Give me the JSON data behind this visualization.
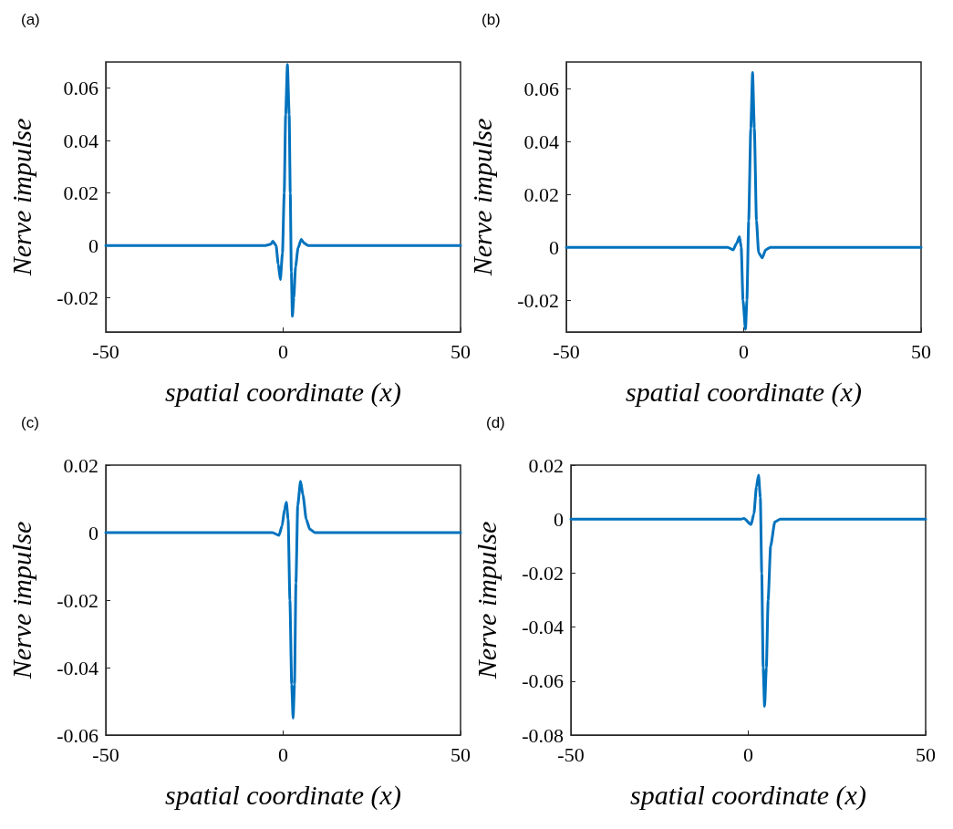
{
  "chart_data": [
    {
      "type": "line",
      "title": "(a)",
      "xlabel": "spatial coordinate (x)",
      "ylabel": "Nerve impulse",
      "color": "#0072bd",
      "line_style": "solid",
      "marker": "none",
      "grid": false,
      "x": [
        -50,
        -5,
        -3.5,
        -2.9,
        -2,
        -1.4,
        -0.8,
        -0.2,
        0.3,
        0.7,
        1.2,
        1.7,
        2.0,
        2.3,
        2.6,
        3.0,
        3.5,
        4.2,
        5.1,
        6,
        7,
        50
      ],
      "values": [
        0,
        0,
        0.0005,
        0.0016,
        0,
        -0.007,
        -0.013,
        -0.003,
        0.02,
        0.05,
        0.069,
        0.05,
        0.02,
        -0.01,
        -0.027,
        -0.02,
        -0.008,
        -0.001,
        0.0023,
        0.0008,
        0,
        0
      ],
      "xlim": [
        -50,
        50
      ],
      "xticks": [
        -50,
        0,
        50
      ],
      "ylim": [
        -0.033,
        0.07
      ],
      "yticks": [
        -0.02,
        0,
        0.02,
        0.04,
        0.06
      ]
    },
    {
      "type": "line",
      "title": "(b)",
      "xlabel": "spatial coordinate (x)",
      "ylabel": "Nerve impulse",
      "color": "#0072bd",
      "line_style": "solid",
      "marker": "none",
      "grid": false,
      "x": [
        -50,
        -4.5,
        -3,
        -2,
        -1.2,
        -0.7,
        -0.2,
        0.5,
        0.9,
        1.4,
        2,
        2.5,
        3,
        3.6,
        4.2,
        5.2,
        6.2,
        7.5,
        50
      ],
      "values": [
        0,
        0,
        -0.001,
        0.0015,
        0.004,
        0,
        -0.02,
        -0.031,
        -0.02,
        0.01,
        0.045,
        0.066,
        0.045,
        0.01,
        -0.002,
        -0.004,
        -0.001,
        0,
        0
      ],
      "xlim": [
        -50,
        50
      ],
      "xticks": [
        -50,
        0,
        50
      ],
      "ylim": [
        -0.032,
        0.07
      ],
      "yticks": [
        -0.02,
        0,
        0.02,
        0.04,
        0.06
      ]
    },
    {
      "type": "line",
      "title": "(c)",
      "xlabel": "spatial coordinate (x)",
      "ylabel": "Nerve impulse",
      "color": "#0072bd",
      "line_style": "solid",
      "marker": "none",
      "grid": false,
      "x": [
        -50,
        -3,
        -1.2,
        -0.3,
        0.4,
        0.9,
        1.4,
        1.9,
        2.4,
        2.8,
        3.2,
        3.6,
        4.1,
        4.9,
        5.6,
        6.5,
        7.5,
        9,
        50
      ],
      "values": [
        0,
        0,
        -0.0008,
        0.002,
        0.007,
        0.009,
        0.004,
        -0.02,
        -0.045,
        -0.055,
        -0.045,
        -0.015,
        0.008,
        0.0152,
        0.011,
        0.004,
        0.001,
        0,
        0
      ],
      "xlim": [
        -50,
        50
      ],
      "xticks": [
        -50,
        0,
        50
      ],
      "ylim": [
        -0.06,
        0.02
      ],
      "yticks": [
        -0.06,
        -0.04,
        -0.02,
        0,
        0.02
      ]
    },
    {
      "type": "line",
      "title": "(d)",
      "xlabel": "spatial coordinate (x)",
      "ylabel": "Nerve impulse",
      "color": "#0072bd",
      "line_style": "solid",
      "marker": "none",
      "grid": false,
      "x": [
        -50,
        -2,
        -1.2,
        0.8,
        1.6,
        2.3,
        2.9,
        3.4,
        3.8,
        4.2,
        4.6,
        5.1,
        5.6,
        6.3,
        7.5,
        9,
        50
      ],
      "values": [
        0,
        0,
        0.0002,
        -0.002,
        0.002,
        0.012,
        0.0163,
        0.008,
        -0.02,
        -0.055,
        -0.0694,
        -0.055,
        -0.03,
        -0.01,
        -0.001,
        0,
        0
      ],
      "xlim": [
        -50,
        50
      ],
      "xticks": [
        -50,
        0,
        50
      ],
      "ylim": [
        -0.08,
        0.02
      ],
      "yticks": [
        -0.08,
        -0.06,
        -0.04,
        -0.02,
        0,
        0.02
      ]
    }
  ]
}
